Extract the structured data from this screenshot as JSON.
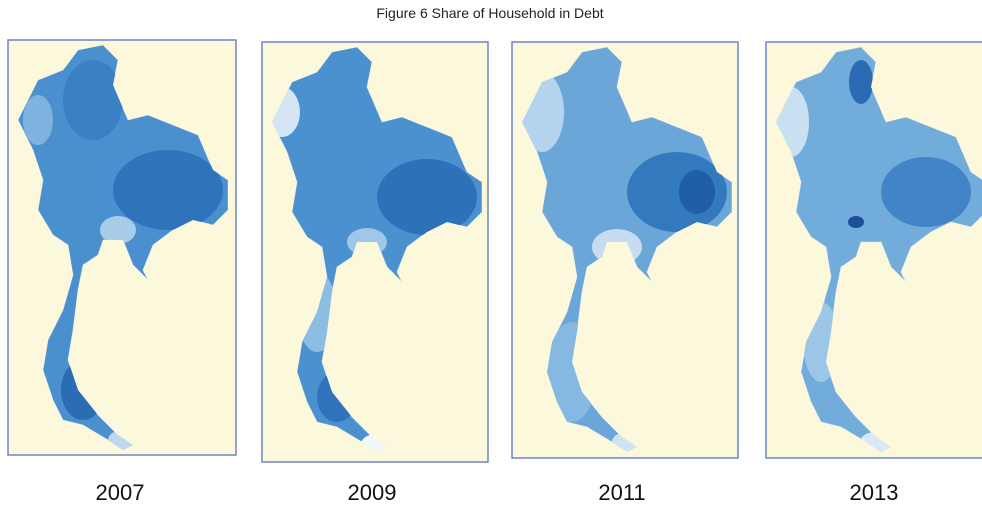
{
  "title": "Figure 6 Share of Household in Debt",
  "panels": [
    {
      "year": "2007"
    },
    {
      "year": "2009"
    },
    {
      "year": "2011"
    },
    {
      "year": "2013"
    }
  ]
}
